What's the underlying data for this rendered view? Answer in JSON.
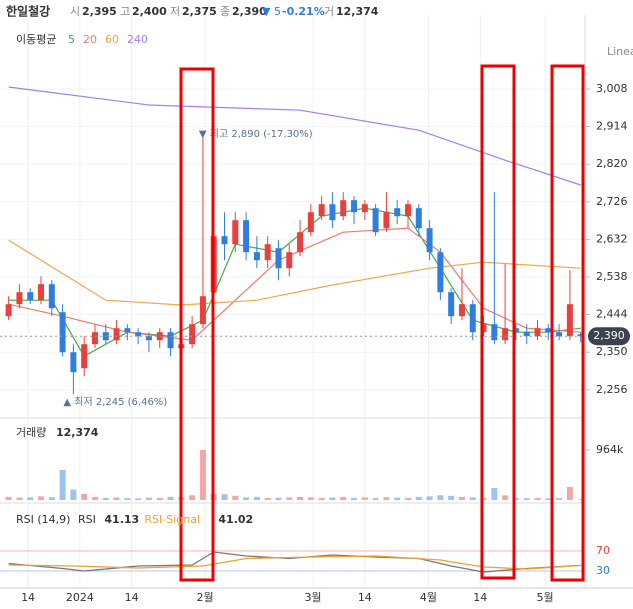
{
  "header": {
    "name": "한일철강",
    "items": [
      {
        "label": "시",
        "value": "2,395"
      },
      {
        "label": "고",
        "value": "2,400"
      },
      {
        "label": "저",
        "value": "2,375"
      },
      {
        "label": "종",
        "value": "2,390"
      }
    ],
    "change": "▼ 5",
    "change_pct": "-0.21%",
    "volume_label": "거",
    "volume": "12,374"
  },
  "chart_data": [
    {
      "type": "candlestick",
      "legend_title": "이동평균",
      "scale": "Linear",
      "up_color": "#e8413d",
      "down_color": "#2f7de1",
      "xlim": [
        -0.8,
        53.4
      ],
      "ylim": [
        2193,
        3193
      ],
      "yticks": [
        {
          "value": 3008,
          "label": "3,008"
        },
        {
          "value": 2914,
          "label": "2,914"
        },
        {
          "value": 2820,
          "label": "2,820"
        },
        {
          "value": 2726,
          "label": "2,726"
        },
        {
          "value": 2632,
          "label": "2,632"
        },
        {
          "value": 2538,
          "label": "2,538"
        },
        {
          "value": 2444,
          "label": "2,444"
        },
        {
          "value": 2350,
          "label": "2,350"
        },
        {
          "value": 2256,
          "label": "2,256"
        }
      ],
      "open": [
        2440,
        2470,
        2500,
        2480,
        2520,
        2450,
        2350,
        2310,
        2370,
        2400,
        2380,
        2410,
        2400,
        2390,
        2380,
        2400,
        2360,
        2370,
        2420,
        2500,
        2640,
        2620,
        2680,
        2600,
        2580,
        2610,
        2560,
        2600,
        2650,
        2690,
        2720,
        2690,
        2730,
        2700,
        2710,
        2660,
        2710,
        2690,
        2710,
        2660,
        2600,
        2500,
        2440,
        2470,
        2400,
        2420,
        2380,
        2410,
        2400,
        2390,
        2410,
        2400,
        2390,
        2395
      ],
      "high": [
        2490,
        2520,
        2510,
        2540,
        2530,
        2470,
        2370,
        2390,
        2420,
        2420,
        2430,
        2420,
        2410,
        2400,
        2410,
        2410,
        2390,
        2440,
        2890,
        2660,
        2700,
        2700,
        2700,
        2640,
        2640,
        2630,
        2620,
        2680,
        2720,
        2740,
        2750,
        2750,
        2740,
        2730,
        2720,
        2750,
        2730,
        2730,
        2720,
        2680,
        2610,
        2510,
        2560,
        2480,
        2440,
        2750,
        2570,
        2420,
        2420,
        2430,
        2420,
        2420,
        2555,
        2400
      ],
      "low": [
        2430,
        2460,
        2470,
        2470,
        2440,
        2340,
        2245,
        2290,
        2360,
        2370,
        2370,
        2380,
        2370,
        2350,
        2360,
        2340,
        2340,
        2360,
        2410,
        2480,
        2580,
        2600,
        2580,
        2560,
        2560,
        2530,
        2540,
        2590,
        2640,
        2680,
        2660,
        2680,
        2670,
        2680,
        2640,
        2650,
        2670,
        2660,
        2640,
        2580,
        2480,
        2420,
        2430,
        2380,
        2390,
        2370,
        2370,
        2380,
        2370,
        2380,
        2380,
        2380,
        2380,
        2375
      ],
      "close": [
        2470,
        2500,
        2480,
        2520,
        2460,
        2350,
        2300,
        2370,
        2400,
        2380,
        2410,
        2400,
        2390,
        2380,
        2400,
        2360,
        2370,
        2420,
        2490,
        2640,
        2620,
        2680,
        2600,
        2580,
        2620,
        2560,
        2600,
        2650,
        2700,
        2720,
        2680,
        2730,
        2700,
        2720,
        2650,
        2700,
        2690,
        2720,
        2660,
        2600,
        2500,
        2440,
        2470,
        2400,
        2420,
        2380,
        2410,
        2400,
        2390,
        2410,
        2400,
        2390,
        2470,
        2390
      ],
      "series": [
        {
          "name": "5",
          "color": "#3fae49",
          "x": [
            0,
            4,
            7,
            11,
            15,
            18,
            21,
            25,
            29,
            33,
            37,
            40,
            43,
            47,
            50,
            53
          ],
          "values": [
            2480,
            2480,
            2340,
            2400,
            2390,
            2430,
            2620,
            2600,
            2690,
            2710,
            2690,
            2560,
            2430,
            2400,
            2400,
            2410
          ]
        },
        {
          "name": "20",
          "color": "#f07b6b",
          "x": [
            0,
            5,
            11,
            17,
            21,
            25,
            31,
            37,
            40,
            44,
            48,
            53
          ],
          "values": [
            2470,
            2440,
            2400,
            2380,
            2480,
            2580,
            2650,
            2660,
            2600,
            2460,
            2410,
            2400
          ]
        },
        {
          "name": "60",
          "color": "#f2a54a",
          "x": [
            0,
            9,
            16,
            23,
            30,
            39,
            44,
            53
          ],
          "values": [
            2630,
            2480,
            2468,
            2480,
            2518,
            2560,
            2575,
            2560
          ]
        },
        {
          "name": "240",
          "color": "#a77df0",
          "x": [
            0,
            13,
            27,
            38,
            46,
            53
          ],
          "values": [
            3013,
            2968,
            2955,
            2905,
            2830,
            2768
          ]
        }
      ],
      "high_label": "최고 2,890 (-17.30%)",
      "low_label": "최저 2,245 (6.46%)",
      "last_price": {
        "value": 2390,
        "label": "2,390"
      }
    },
    {
      "type": "bar",
      "title": "거래량",
      "current": "12,374",
      "up_color": "#f2a7a7",
      "down_color": "#9cc3ef",
      "ylim": [
        0,
        1500000
      ],
      "yticks": [
        {
          "value": 964000,
          "label": "964k"
        }
      ],
      "values": [
        60000,
        45000,
        50000,
        70000,
        55000,
        580000,
        200000,
        120000,
        60000,
        40000,
        50000,
        35000,
        30000,
        45000,
        40000,
        60000,
        55000,
        90000,
        960000,
        120000,
        110000,
        80000,
        50000,
        60000,
        40000,
        45000,
        50000,
        60000,
        50000,
        40000,
        45000,
        60000,
        40000,
        50000,
        35000,
        55000,
        45000,
        40000,
        60000,
        70000,
        90000,
        80000,
        60000,
        50000,
        40000,
        230000,
        90000,
        40000,
        35000,
        40000,
        30000,
        35000,
        250000,
        12374
      ]
    },
    {
      "type": "line",
      "title": "RSI (14,9)",
      "ylim": [
        0,
        100
      ],
      "yticks": [
        70,
        30
      ],
      "ytick_colors": [
        "#e8413d",
        "#2f7de1"
      ],
      "xticks": [
        {
          "value": 1.8,
          "label": "14"
        },
        {
          "value": 6.6,
          "label": "2024"
        },
        {
          "value": 11.4,
          "label": "14"
        },
        {
          "value": 18.2,
          "label": "2월"
        },
        {
          "value": 28.2,
          "label": "3월"
        },
        {
          "value": 33,
          "label": "14"
        },
        {
          "value": 38.9,
          "label": "4월"
        },
        {
          "value": 43.7,
          "label": "14"
        },
        {
          "value": 49.7,
          "label": "5월"
        }
      ],
      "series": [
        {
          "name": "RSI",
          "color": "#777777",
          "current": 41.13,
          "x": [
            0,
            5,
            7,
            12,
            17,
            19,
            22,
            26,
            30,
            34,
            38,
            41,
            44,
            48,
            53
          ],
          "values": [
            45,
            35,
            30,
            40,
            42,
            68,
            60,
            55,
            62,
            58,
            55,
            40,
            28,
            35,
            41.13
          ]
        },
        {
          "name": "RSI-Signal",
          "color": "#f0a030",
          "current": 41.02,
          "x": [
            0,
            6,
            12,
            18,
            22,
            28,
            34,
            40,
            44,
            48,
            53
          ],
          "values": [
            42,
            40,
            36,
            40,
            55,
            58,
            60,
            52,
            38,
            34,
            41.02
          ]
        }
      ]
    }
  ]
}
